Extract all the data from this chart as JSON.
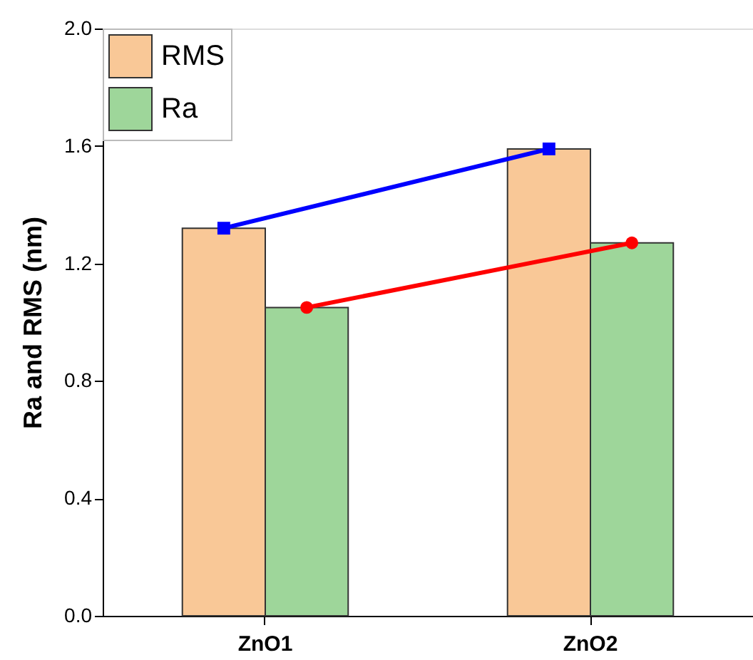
{
  "chart_data": {
    "type": "bar",
    "ylabel": "Ra and RMS (nm)",
    "categories": [
      "ZnO1",
      "ZnO2"
    ],
    "series": [
      {
        "name": "RMS",
        "color": "#f9c897",
        "values": [
          1.32,
          1.59
        ]
      },
      {
        "name": "Ra",
        "color": "#9ed69a",
        "values": [
          1.05,
          1.27
        ]
      },
      {
        "type": "line",
        "color": "#0000ff",
        "x": [
          "ZnO1",
          "ZnO2"
        ],
        "values": [
          1.32,
          1.59
        ],
        "marker": "square"
      },
      {
        "type": "line",
        "color": "#ff0000",
        "x": [
          "ZnO1",
          "ZnO2"
        ],
        "values": [
          1.05,
          1.27
        ],
        "marker": "circle"
      }
    ],
    "ylim": [
      0,
      2.0
    ],
    "yticks": [
      {
        "value": 0,
        "label": "0.0"
      },
      {
        "value": 0.4,
        "label": "0.4"
      },
      {
        "value": 0.8,
        "label": "0.8"
      },
      {
        "value": 1.2,
        "label": "1.2"
      },
      {
        "value": 1.6,
        "label": "1.6"
      },
      {
        "value": 2.0,
        "label": "2.0"
      }
    ],
    "legend": "top left",
    "grid": false
  }
}
